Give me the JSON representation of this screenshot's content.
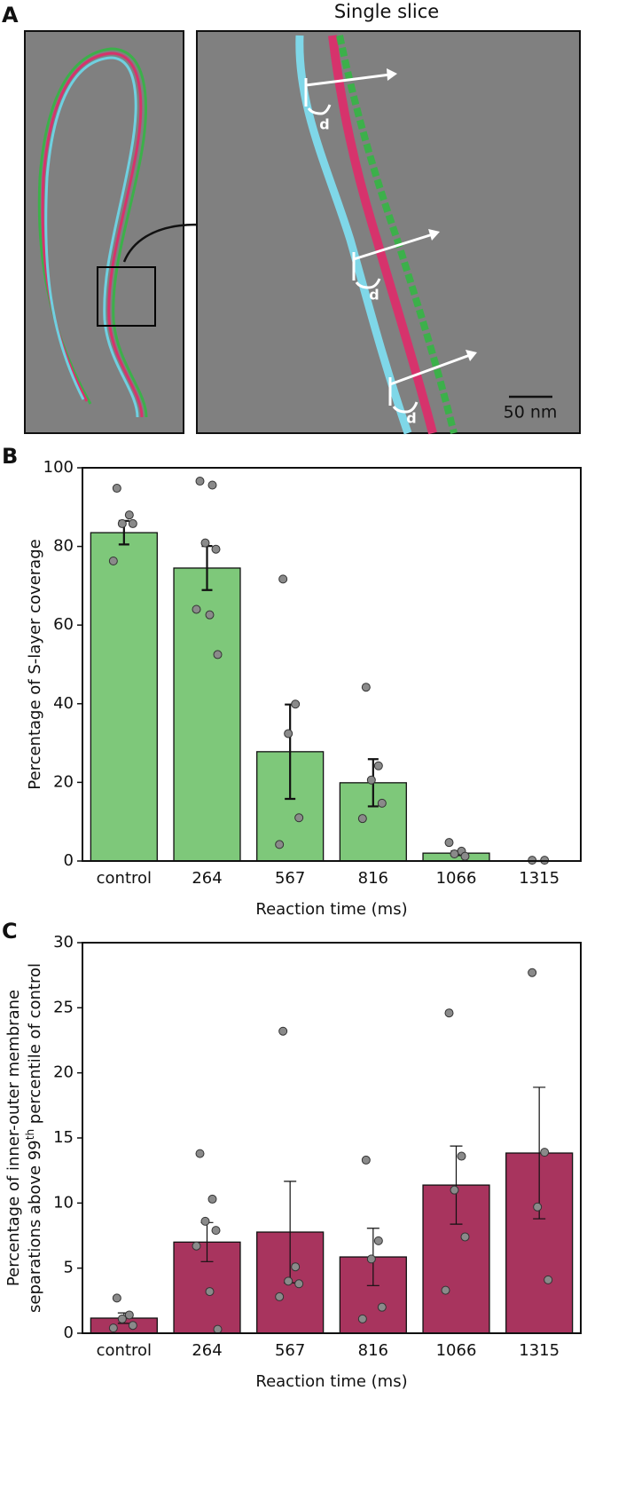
{
  "panel_a": {
    "label": "A",
    "title": "Single slice",
    "annotations": [
      "d",
      "d",
      "d"
    ],
    "scale_bar": "50 nm"
  },
  "chart_data": [
    {
      "type": "bar",
      "panel_label": "B",
      "x_label": "Reaction time (ms)",
      "y_label": [
        "Percentage of S-layer coverage"
      ],
      "categories": [
        "control",
        "264",
        "567",
        "816",
        "1066",
        "1315"
      ],
      "values": [
        83.5,
        74.5,
        27.8,
        19.9,
        2.0,
        0
      ],
      "errors": [
        3.0,
        5.6,
        12.0,
        6.0,
        0.5,
        0
      ],
      "points": [
        [
          94.8,
          88.0,
          85.8,
          85.8,
          76.3
        ],
        [
          96.6,
          95.6,
          80.9,
          79.3,
          64.0,
          62.6,
          52.5
        ],
        [
          71.7,
          39.9,
          32.4,
          11.0,
          4.2
        ],
        [
          44.2,
          24.2,
          20.6,
          14.7,
          10.8
        ],
        [
          4.7,
          2.5,
          1.8,
          1.2
        ],
        [
          0.2,
          0.2
        ]
      ],
      "color": "#7ec87a",
      "point_color": "#8a8a8a",
      "ylim": [
        0,
        100
      ],
      "yticks": [
        0,
        20,
        40,
        60,
        80,
        100
      ]
    },
    {
      "type": "bar",
      "panel_label": "C",
      "x_label": "Reaction time (ms)",
      "y_label": [
        "Percentage of inner-outer membrane",
        "separations above 99",
        "th",
        " percentile of control"
      ],
      "categories": [
        "control",
        "264",
        "567",
        "816",
        "1066",
        "1315"
      ],
      "values": [
        1.16,
        7.0,
        7.77,
        5.86,
        11.38,
        13.84
      ],
      "errors": [
        0.4,
        1.5,
        3.9,
        2.2,
        3.0,
        5.05
      ],
      "points": [
        [
          2.7,
          1.4,
          1.1,
          0.6,
          0.4
        ],
        [
          13.8,
          10.3,
          8.6,
          7.9,
          6.7,
          3.2,
          0.3
        ],
        [
          23.2,
          5.1,
          4.0,
          3.8,
          2.8
        ],
        [
          13.3,
          7.1,
          5.7,
          2.0,
          1.1
        ],
        [
          24.6,
          13.6,
          11.0,
          7.4,
          3.3
        ],
        [
          27.7,
          13.9,
          9.7,
          4.1
        ]
      ],
      "color": "#a8345e",
      "point_color": "#8a8a8a",
      "ylim": [
        0,
        30
      ],
      "yticks": [
        0,
        5,
        10,
        15,
        20,
        25,
        30
      ]
    }
  ]
}
